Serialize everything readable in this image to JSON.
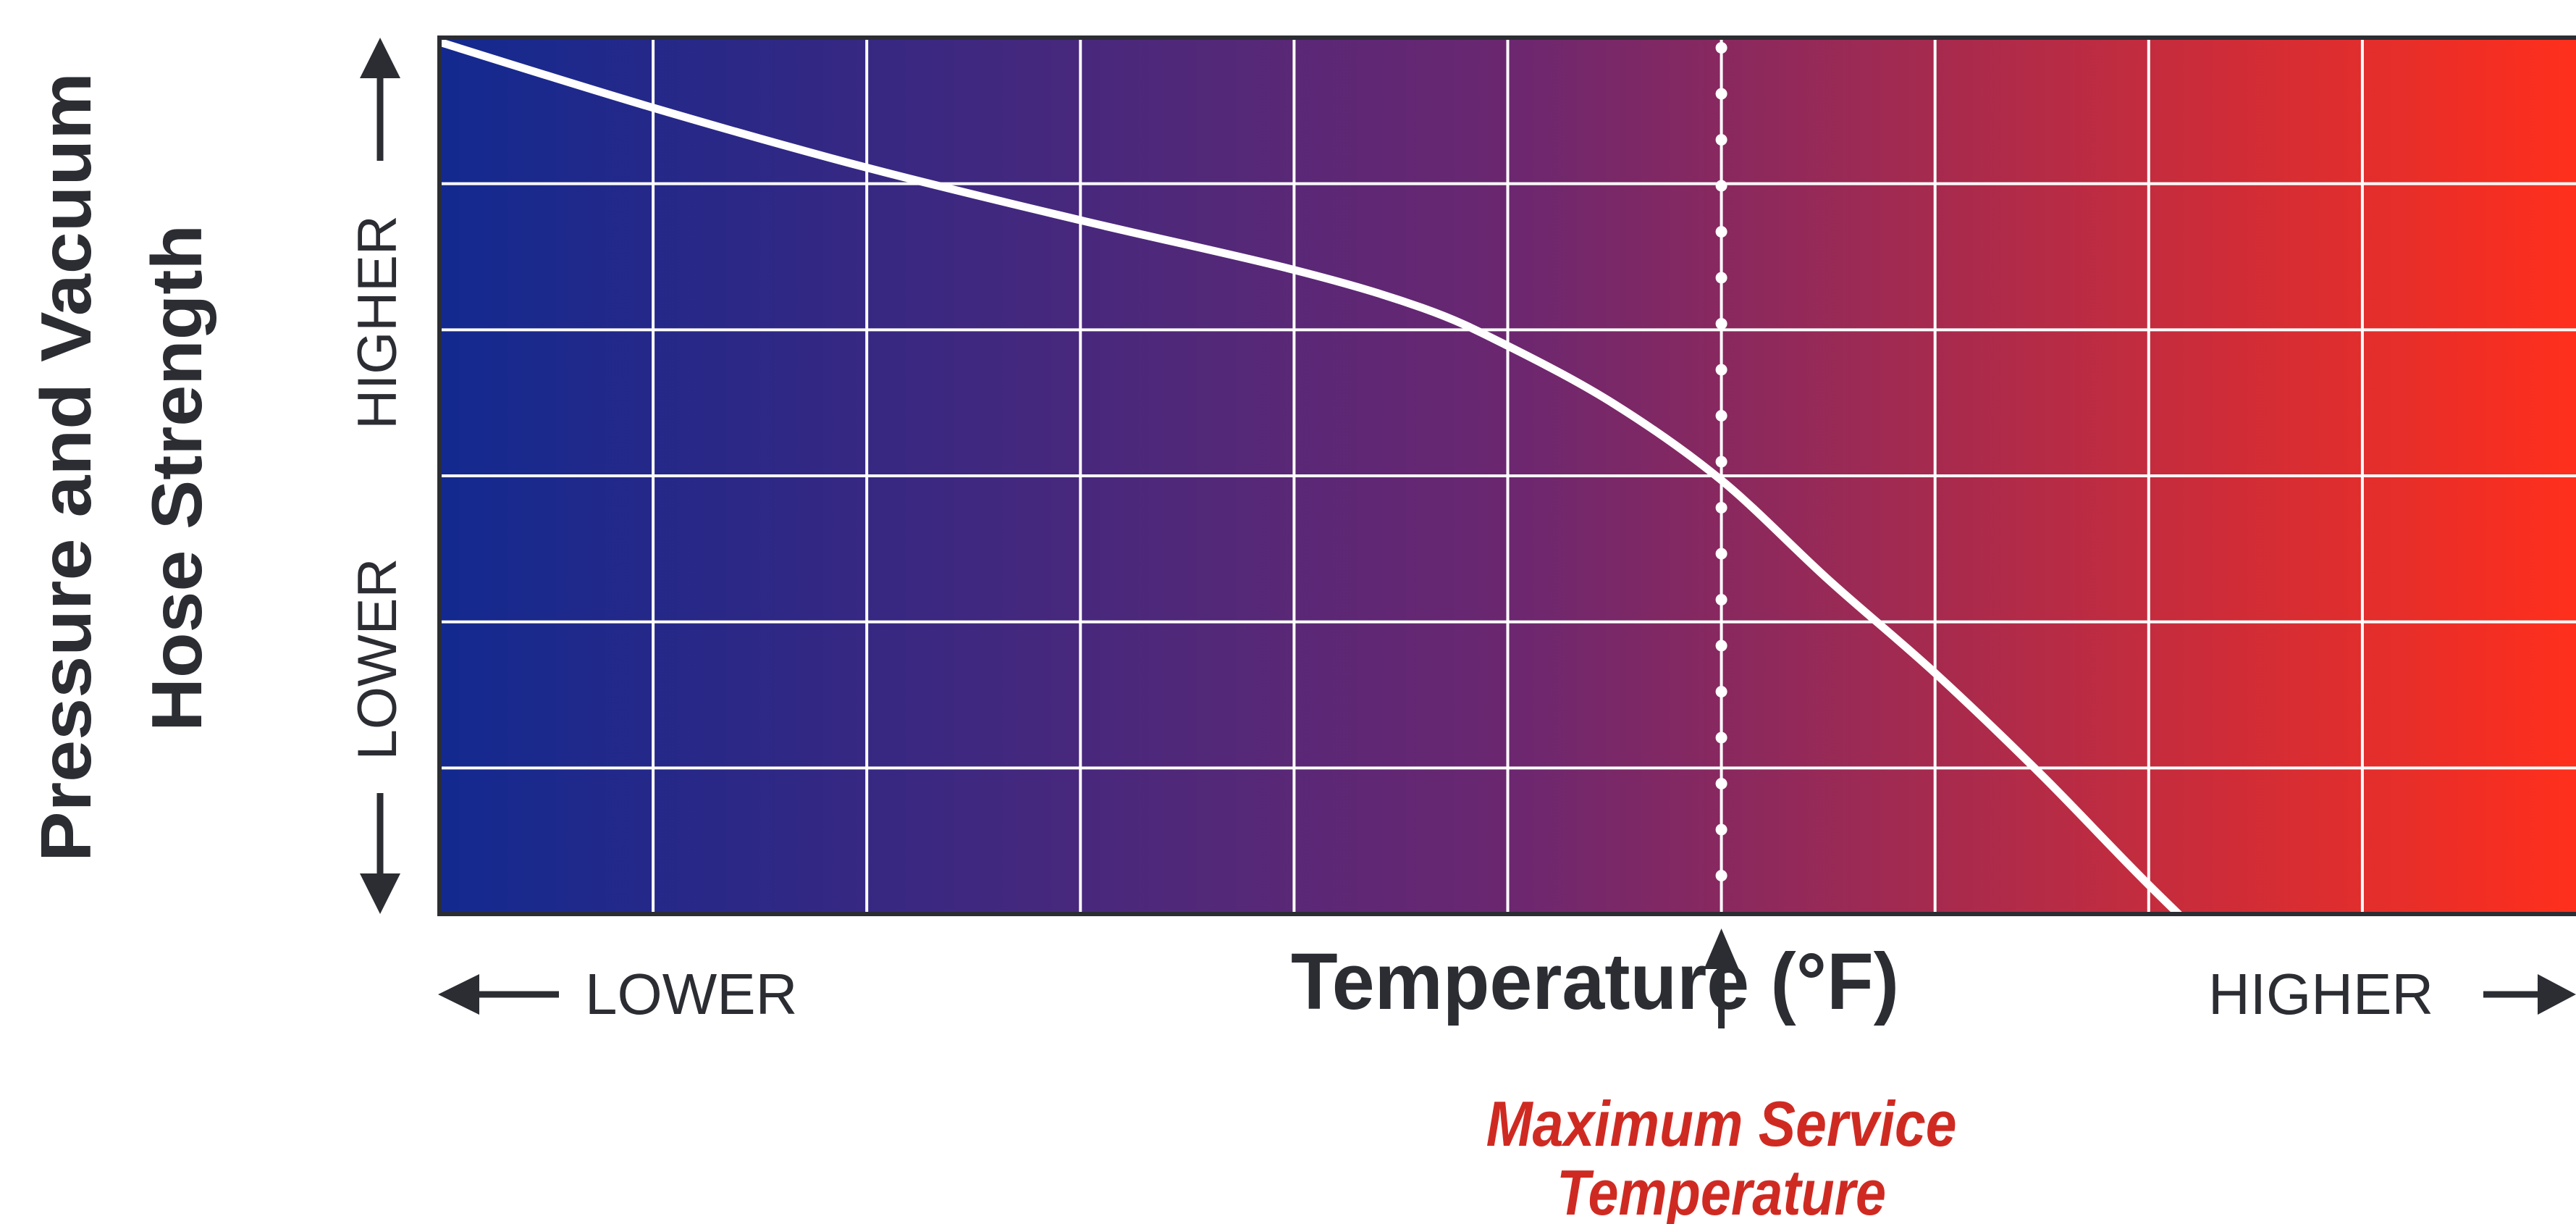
{
  "chart_data": {
    "type": "line",
    "title": "",
    "xlabel": "Temperature (°F)",
    "ylabel_line1": "Pressure and Vacuum",
    "ylabel_line2": "Hose Strength",
    "x_axis": {
      "low_label": "LOWER",
      "high_label": "HIGHER"
    },
    "y_axis": {
      "low_label": "LOWER",
      "high_label": "HIGHER"
    },
    "xlim": [
      0,
      10
    ],
    "ylim": [
      0,
      6
    ],
    "grid": true,
    "series": [
      {
        "x": [
          0,
          1,
          2,
          3,
          4,
          4.6,
          5,
          5.5,
          6,
          6.5,
          7.0,
          7.5,
          8.0,
          8.6
        ],
        "y": [
          5.97,
          5.52,
          5.11,
          4.75,
          4.41,
          4.15,
          3.89,
          3.49,
          2.97,
          2.29,
          1.65,
          0.95,
          0.2,
          -0.65
        ]
      }
    ],
    "annotations": [
      {
        "x": 6.0,
        "text_line1": "Maximum Service",
        "text_line2": "Temperature",
        "style": "dotted-vertical"
      }
    ],
    "colors": {
      "gradient_start": "#13298f",
      "gradient_mid": "#6b2770",
      "gradient_end": "#ff2f1c",
      "curve": "#ffffff",
      "annotation_text": "#cf2a22",
      "axis": "#2b2d33"
    }
  }
}
